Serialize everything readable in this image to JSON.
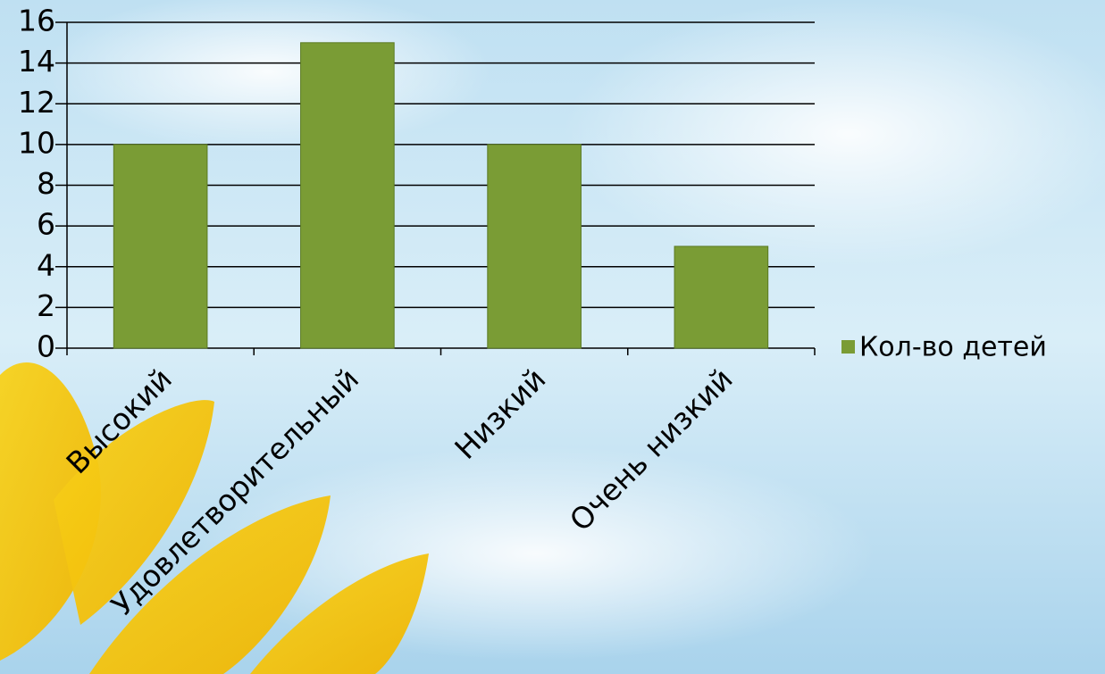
{
  "chart_data": {
    "type": "bar",
    "categories": [
      "Высокий",
      "Удовлетворительный",
      "Низкий",
      "Очень низкий"
    ],
    "series": [
      {
        "name": "Кол-во детей",
        "color": "#7a9c35",
        "values": [
          10,
          15,
          10,
          5
        ]
      }
    ],
    "ylim": [
      0,
      16
    ],
    "yticks": [
      0,
      2,
      4,
      6,
      8,
      10,
      12,
      14,
      16
    ],
    "grid": true,
    "legend": "right"
  }
}
